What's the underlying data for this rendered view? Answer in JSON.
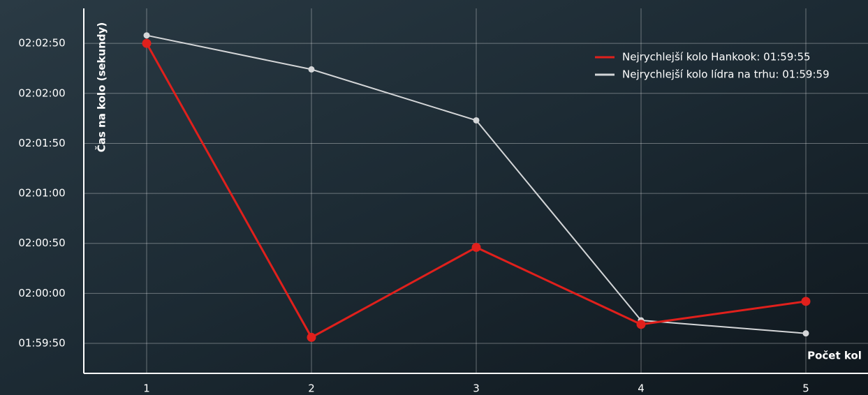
{
  "chart_data": {
    "type": "line",
    "x_label": "Počet kol",
    "y_label": "Čas na kolo (sekundy)",
    "categories": [
      "1",
      "2",
      "3",
      "4",
      "5"
    ],
    "series": [
      {
        "name": "Nejrychlejší kolo Hankook: 01:59:55",
        "color": "#e0201c",
        "values": [
          122.5,
          119.56,
          120.46,
          119.69,
          119.92
        ]
      },
      {
        "name": "Nejrychlejší kolo lídra na trhu: 01:59:59",
        "color": "#d4d6d8",
        "values": [
          122.58,
          122.24,
          121.73,
          119.73,
          119.6
        ]
      }
    ],
    "ylim": [
      119.2,
      122.85
    ],
    "yticks": [
      {
        "value": 119.5,
        "label": "01:59:50"
      },
      {
        "value": 120,
        "label": "02:00:00"
      },
      {
        "value": 120.5,
        "label": "02:00:50"
      },
      {
        "value": 121,
        "label": "02:01:00"
      },
      {
        "value": 121.5,
        "label": "02:01:50"
      },
      {
        "value": 122,
        "label": "02:02:00"
      },
      {
        "value": 122.5,
        "label": "02:02:50"
      }
    ],
    "grid": true,
    "legend": "top-right"
  }
}
